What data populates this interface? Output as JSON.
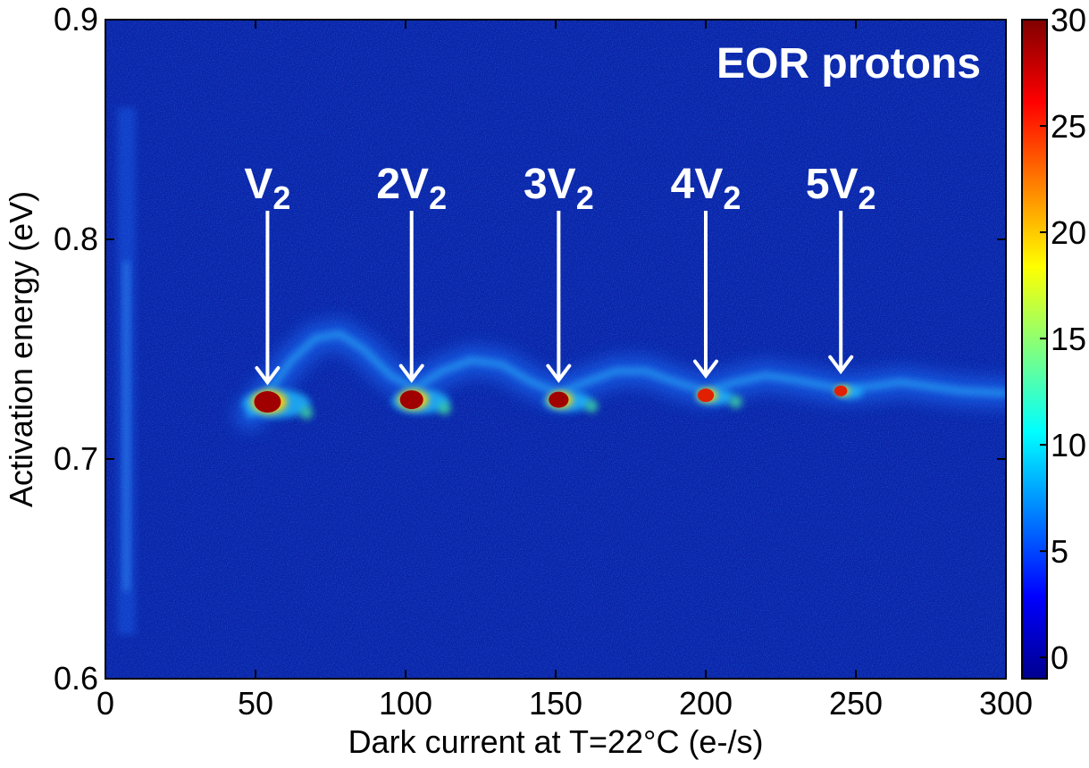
{
  "chart_data": {
    "type": "heatmap",
    "title": "",
    "annotation_title": "EOR protons",
    "xlabel": "Dark current at T=22°C (e-/s)",
    "ylabel": "Activation energy (eV)",
    "xlim": [
      0,
      300
    ],
    "ylim": [
      0.6,
      0.9
    ],
    "x_ticks": [
      0,
      50,
      100,
      150,
      200,
      250,
      300
    ],
    "y_ticks": [
      0.6,
      0.7,
      0.8,
      0.9
    ],
    "colorbar": {
      "range": [
        -1,
        30
      ],
      "ticks": [
        0,
        5,
        10,
        15,
        20,
        25,
        30
      ],
      "colormap": "jet"
    },
    "background_color": "#0a23a8",
    "peaks": [
      {
        "label": "V",
        "sub": "2",
        "x": 54,
        "y": 0.726
      },
      {
        "label": "2V",
        "sub": "2",
        "x": 102,
        "y": 0.727
      },
      {
        "label": "3V",
        "sub": "2",
        "x": 151,
        "y": 0.727
      },
      {
        "label": "4V",
        "sub": "2",
        "x": 200,
        "y": 0.729
      },
      {
        "label": "5V",
        "sub": "2",
        "x": 245,
        "y": 0.731
      }
    ],
    "ridge": {
      "x": [
        48,
        55,
        62,
        70,
        78,
        86,
        95,
        103,
        112,
        122,
        132,
        142,
        151,
        160,
        170,
        180,
        190,
        200,
        210,
        220,
        230,
        245,
        255,
        265,
        275,
        285,
        300
      ],
      "y": [
        0.72,
        0.732,
        0.745,
        0.755,
        0.757,
        0.75,
        0.738,
        0.732,
        0.74,
        0.745,
        0.743,
        0.735,
        0.73,
        0.735,
        0.74,
        0.74,
        0.735,
        0.731,
        0.735,
        0.738,
        0.736,
        0.732,
        0.733,
        0.735,
        0.733,
        0.731,
        0.73
      ]
    }
  }
}
